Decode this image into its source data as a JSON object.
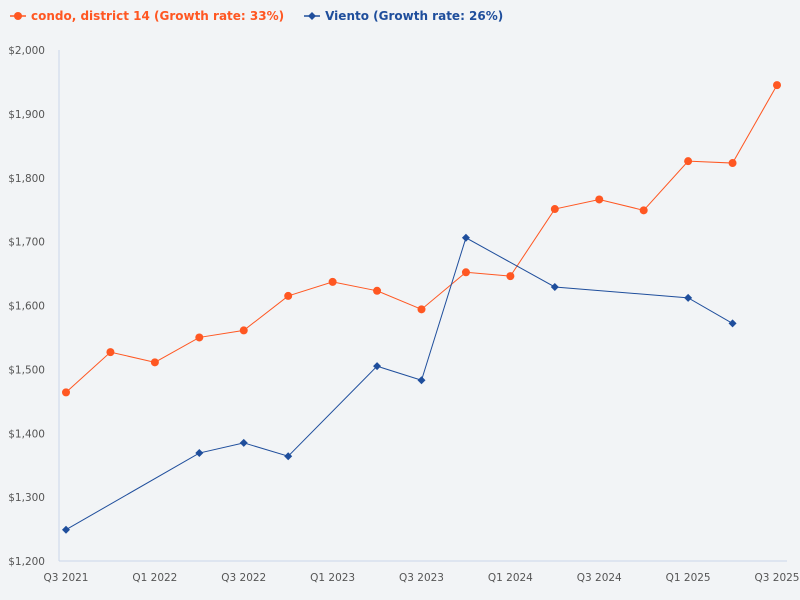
{
  "chart_data": {
    "type": "line",
    "title": "",
    "xlabel": "",
    "ylabel": "",
    "x": [
      "Q3 2021",
      "Q4 2021",
      "Q1 2022",
      "Q2 2022",
      "Q3 2022",
      "Q4 2022",
      "Q1 2023",
      "Q2 2023",
      "Q3 2023",
      "Q4 2023",
      "Q1 2024",
      "Q2 2024",
      "Q3 2024",
      "Q4 2024",
      "Q1 2025",
      "Q2 2025",
      "Q3 2025"
    ],
    "x_tick_labels": [
      "Q3 2021",
      "Q1 2022",
      "Q3 2022",
      "Q1 2023",
      "Q3 2023",
      "Q1 2024",
      "Q3 2024",
      "Q1 2025",
      "Q3 2025"
    ],
    "ylim": [
      1200,
      2000
    ],
    "y_ticks": [
      1200,
      1300,
      1400,
      1500,
      1600,
      1700,
      1800,
      1900,
      2000
    ],
    "y_tick_labels": [
      "$1,200",
      "$1,300",
      "$1,400",
      "$1,500",
      "$1,600",
      "$1,700",
      "$1,800",
      "$1,900",
      "$2,000"
    ],
    "grid": false,
    "legend_position": "top-left",
    "series": [
      {
        "name": "condo, district 14 (Growth rate: 33%)",
        "color": "#ff5722",
        "marker": "circle",
        "values": [
          1464,
          1527,
          1511,
          1550,
          1561,
          1615,
          1637,
          1623,
          1594,
          1652,
          1646,
          1751,
          1766,
          1749,
          1826,
          1823,
          1945
        ]
      },
      {
        "name": "Viento (Growth rate: 26%)",
        "color": "#1f4e9c",
        "marker": "diamond",
        "values": [
          1249,
          null,
          null,
          1369,
          1385,
          1364,
          null,
          1505,
          1483,
          1706,
          null,
          1629,
          null,
          null,
          1612,
          1572,
          null
        ]
      }
    ]
  }
}
